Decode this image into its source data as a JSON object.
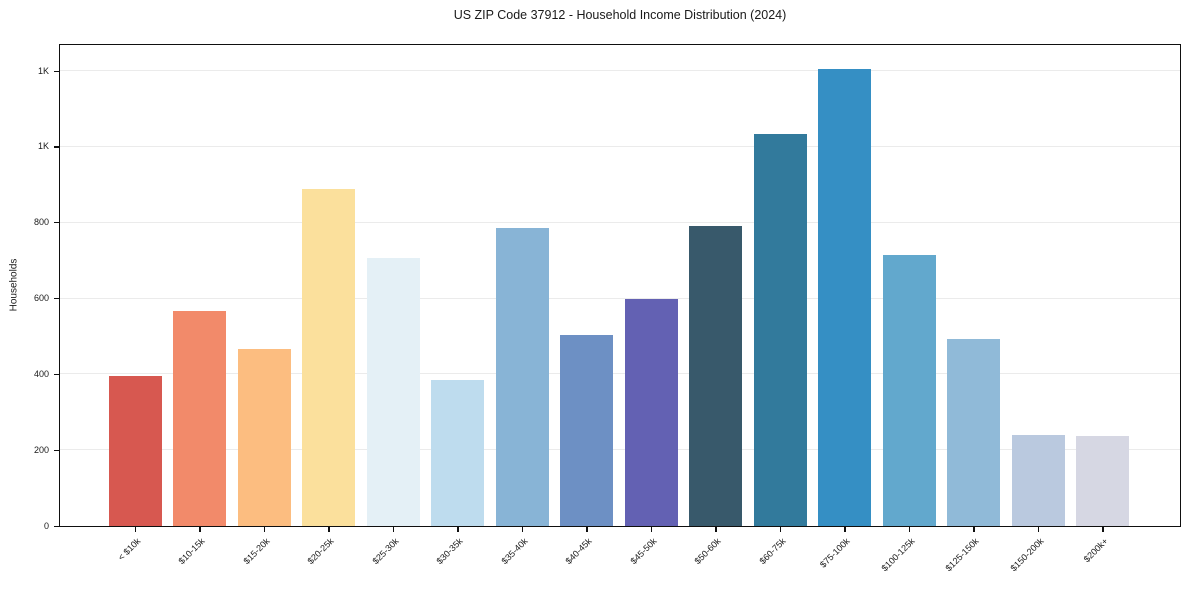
{
  "chart_data": {
    "type": "bar",
    "title": "US ZIP Code 37912 - Household Income Distribution (2024)",
    "xlabel": "",
    "ylabel": "Households",
    "grid": "horizontal",
    "legend": "none",
    "ylim": [
      0,
      1266
    ],
    "yticks": [
      {
        "value": 0,
        "label": "0"
      },
      {
        "value": 200,
        "label": "200"
      },
      {
        "value": 400,
        "label": "400"
      },
      {
        "value": 600,
        "label": "600"
      },
      {
        "value": 800,
        "label": "800"
      },
      {
        "value": 1000,
        "label": "1K"
      },
      {
        "value": 1200,
        "label": "1K"
      }
    ],
    "categories": [
      "< $10k",
      "$10-15k",
      "$15-20k",
      "$20-25k",
      "$25-30k",
      "$30-35k",
      "$35-40k",
      "$40-45k",
      "$45-50k",
      "$50-60k",
      "$60-75k",
      "$75-100k",
      "$100-125k",
      "$125-150k",
      "$150-200k",
      "$200k+"
    ],
    "values": [
      395,
      567,
      466,
      888,
      708,
      386,
      786,
      504,
      600,
      792,
      1033,
      1206,
      715,
      494,
      241,
      237
    ],
    "bar_colors": [
      "#d75850",
      "#f28a6a",
      "#fcbd80",
      "#fbe09c",
      "#e4f0f6",
      "#bedcee",
      "#88b4d6",
      "#6d90c4",
      "#6361b3",
      "#38596b",
      "#327a9c",
      "#358fc4",
      "#62a8cd",
      "#90bad8",
      "#bac9df",
      "#d6d7e3"
    ],
    "spine_color": "#0f0f0f",
    "grid_color": "#ebebeb",
    "text_color": "#1a1a1a",
    "background_color": "#ffffff"
  }
}
